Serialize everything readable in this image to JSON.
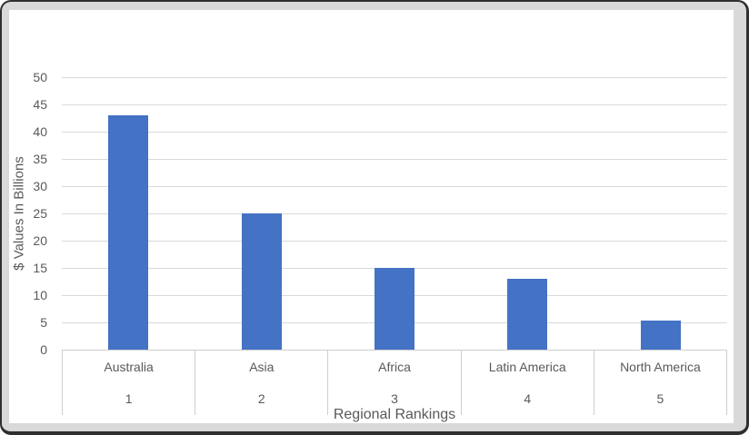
{
  "chart_data": {
    "type": "bar",
    "title": "",
    "categories": [
      "Australia",
      "Asia",
      "Africa",
      "Latin America",
      "North America"
    ],
    "category_ranks": [
      "1",
      "2",
      "3",
      "4",
      "5"
    ],
    "values": [
      43,
      25,
      15,
      13,
      5.3
    ],
    "xlabel": "Regional Rankings",
    "ylabel": "$ Values In Billions",
    "ylim": [
      0,
      50
    ],
    "yticks": [
      0,
      5,
      10,
      15,
      20,
      25,
      30,
      35,
      40,
      45,
      50
    ],
    "grid": true,
    "legend_position": "none",
    "bar_color": "#4472C4",
    "gridline_color": "#D9D9D9",
    "axis_line_color": "#D0CECE",
    "label_color": "#595959",
    "frame_fill": "#D9D9D9",
    "frame_border_color": "#2F2F2F",
    "plot_background": "#FFFFFF"
  }
}
